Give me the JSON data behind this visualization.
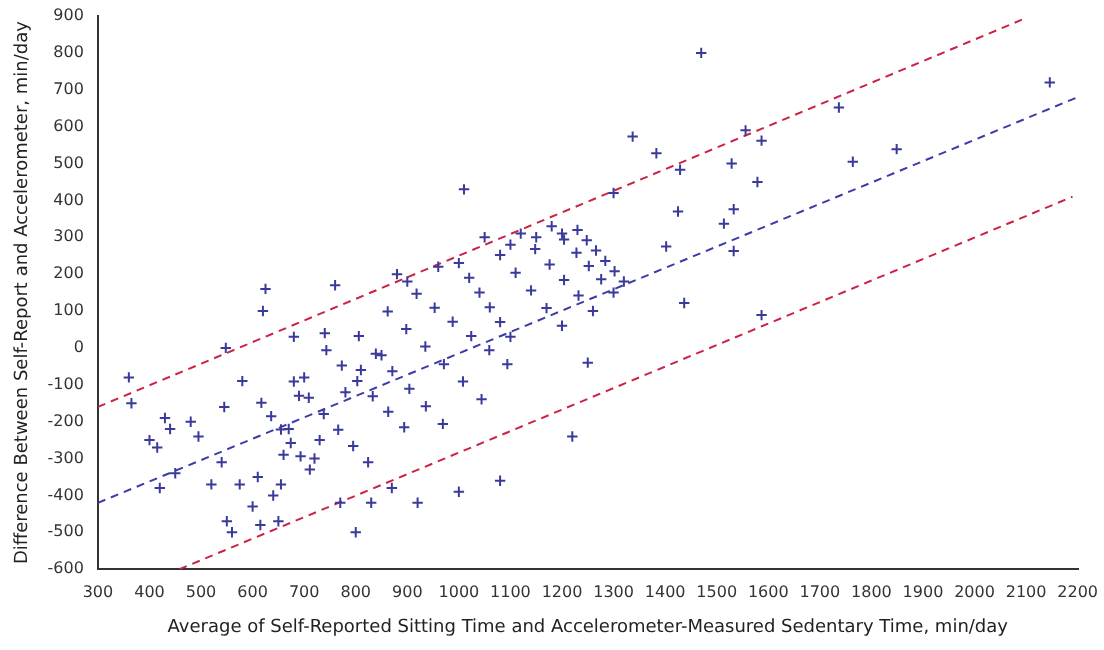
{
  "chart_data": {
    "type": "scatter",
    "xlabel": "Average of Self-Reported Sitting Time and Accelerometer-Measured Sedentary Time, min/day",
    "ylabel": "Difference Between Self-Report and Accelerometer, min/day",
    "xlim": [
      300,
      2200
    ],
    "xticks": [
      300,
      400,
      500,
      600,
      700,
      800,
      900,
      1000,
      1100,
      1200,
      1300,
      1400,
      1500,
      1600,
      1700,
      1800,
      1900,
      2000,
      2100,
      2200
    ],
    "ylim": [
      -600,
      900
    ],
    "yticks": [
      -600,
      -500,
      -400,
      -300,
      -200,
      -100,
      0,
      100,
      200,
      300,
      400,
      500,
      600,
      700,
      800,
      900
    ],
    "grid": false,
    "legend": false,
    "series": [
      {
        "type": "scatter",
        "color": "#3a3a9c",
        "marker": "cross",
        "x": [
          360,
          365,
          400,
          415,
          420,
          430,
          440,
          450,
          480,
          495,
          520,
          540,
          545,
          548,
          550,
          560,
          575,
          580,
          600,
          610,
          615,
          620,
          625,
          640,
          650,
          655,
          660,
          670,
          680,
          690,
          700,
          720,
          730,
          740,
          760,
          770,
          780,
          800,
          810,
          830,
          850,
          870,
          880,
          900,
          920,
          960,
          1000,
          1010,
          1080,
          1100,
          1150,
          1200,
          1220,
          1250,
          1300,
          1337,
          1383,
          1402,
          1425,
          1429,
          1437,
          1470,
          1514,
          1529,
          1533,
          1533,
          1556,
          1579,
          1587,
          1587,
          1737,
          1764,
          1849,
          2146,
          617,
          636,
          655,
          674,
          693,
          711,
          680,
          709,
          738,
          766,
          795,
          824,
          743,
          773,
          803,
          833,
          863,
          894,
          806,
          839,
          871,
          904,
          936,
          969,
          862,
          898,
          935,
          971,
          1008,
          1044,
          918,
          953,
          988,
          1024,
          1059,
          1094,
          1000,
          1020,
          1040,
          1060,
          1080,
          1100,
          1050,
          1080,
          1110,
          1140,
          1170,
          1200,
          1120,
          1148,
          1176,
          1204,
          1232,
          1260,
          1180,
          1204,
          1228,
          1252,
          1276,
          1300,
          1230,
          1248,
          1266,
          1284,
          1302,
          1320
        ],
        "values": [
          -80,
          -150,
          -250,
          -270,
          -380,
          -190,
          -220,
          -340,
          -200,
          -240,
          -370,
          -310,
          -160,
          0,
          -470,
          -500,
          -370,
          -90,
          -430,
          -350,
          -480,
          100,
          160,
          -400,
          -470,
          -370,
          -290,
          -220,
          30,
          -130,
          -80,
          -300,
          -250,
          40,
          170,
          -420,
          -120,
          -500,
          -60,
          -420,
          -20,
          -380,
          200,
          180,
          -420,
          220,
          -390,
          430,
          -360,
          280,
          300,
          310,
          -240,
          -40,
          420,
          573,
          528,
          275,
          370,
          483,
          122,
          800,
          337,
          500,
          376,
          263,
          590,
          450,
          562,
          89,
          652,
          505,
          539,
          720,
          -149,
          -185,
          -221,
          -258,
          -294,
          -330,
          -91,
          -135,
          -179,
          -222,
          -266,
          -310,
          -6,
          -48,
          -90,
          -131,
          -173,
          -215,
          32,
          -16,
          -63,
          -111,
          -158,
          -206,
          99,
          51,
          4,
          -44,
          -91,
          -139,
          147,
          109,
          71,
          32,
          -6,
          -44,
          230,
          190,
          150,
          110,
          70,
          30,
          300,
          252,
          204,
          156,
          108,
          60,
          310,
          268,
          226,
          184,
          142,
          100,
          330,
          294,
          258,
          222,
          186,
          150,
          320,
          292,
          264,
          236,
          208,
          180
        ]
      },
      {
        "type": "line",
        "color": "#3c3ca8",
        "marker": "none",
        "line_style": "dashed",
        "x": [
          300,
          2200
        ],
        "values": [
          -420,
          680
        ]
      },
      {
        "type": "line",
        "color": "#cc2244",
        "marker": "none",
        "line_style": "dashed",
        "x": [
          300,
          2092
        ],
        "values": [
          -160,
          890
        ]
      },
      {
        "type": "line",
        "color": "#cc2244",
        "marker": "none",
        "line_style": "dashed",
        "x": [
          458,
          2190
        ],
        "values": [
          -600,
          410
        ]
      }
    ]
  }
}
